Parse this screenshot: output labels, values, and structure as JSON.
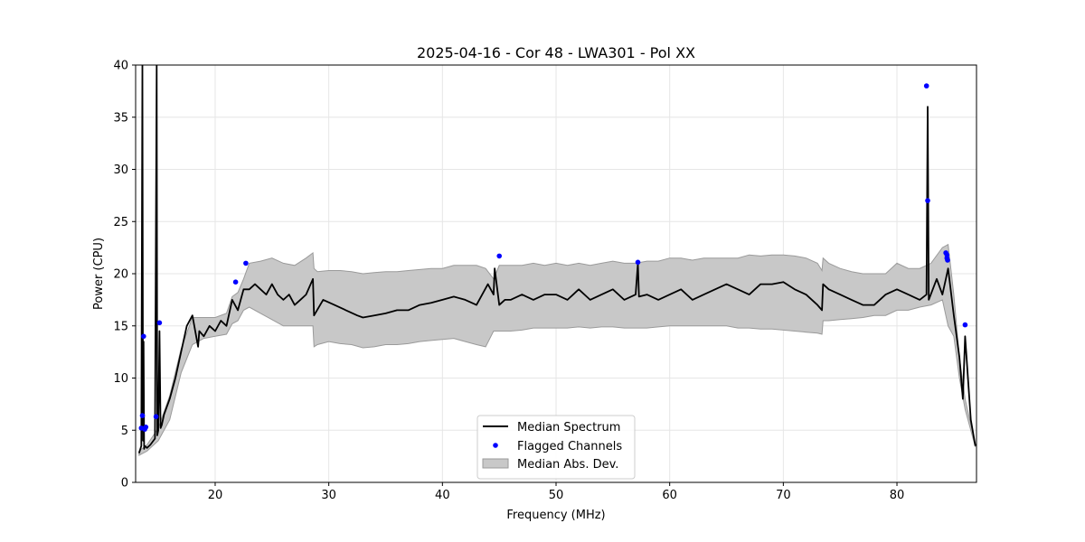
{
  "chart_data": {
    "type": "line",
    "title": "2025-04-16 - Cor 48 - LWA301 - Pol XX",
    "xlabel": "Frequency (MHz)",
    "ylabel": "Power (CPU)",
    "xlim": [
      13,
      87
    ],
    "ylim": [
      0,
      40
    ],
    "xticks": [
      20,
      30,
      40,
      50,
      60,
      70,
      80
    ],
    "yticks": [
      0,
      5,
      10,
      15,
      20,
      25,
      30,
      35,
      40
    ],
    "grid": true,
    "legend": {
      "placement": "bottom-center",
      "entries": [
        "Median Spectrum",
        "Flagged Channels",
        "Median Abs. Dev."
      ]
    },
    "colors": {
      "median": "#000000",
      "flagged": "#0000ff",
      "mad_fill": "#c8c8c8",
      "mad_edge": "#9a9a9a"
    },
    "series": [
      {
        "name": "Median Spectrum",
        "x": [
          13.3,
          13.5,
          13.6,
          13.65,
          13.7,
          13.75,
          13.8,
          14.0,
          14.3,
          14.7,
          14.85,
          14.9,
          15.0,
          15.1,
          15.2,
          15.3,
          15.5,
          16.0,
          16.5,
          17.0,
          17.5,
          18.0,
          18.5,
          18.6,
          19.0,
          19.5,
          20.0,
          20.5,
          21.0,
          21.5,
          22.0,
          22.5,
          23.0,
          23.5,
          24.0,
          24.5,
          25.0,
          25.5,
          26.0,
          26.5,
          27.0,
          27.5,
          28.0,
          28.6,
          28.7,
          29.5,
          30.5,
          31.5,
          32.5,
          33.0,
          34.0,
          35.0,
          36.0,
          37.0,
          38.0,
          39.0,
          40.0,
          41.0,
          42.0,
          43.0,
          44.0,
          44.5,
          44.6,
          45.0,
          45.5,
          46.0,
          47.0,
          48.0,
          49.0,
          50.0,
          51.0,
          52.0,
          53.0,
          54.0,
          55.0,
          56.0,
          57.0,
          57.2,
          57.3,
          58.0,
          59.0,
          60.0,
          61.0,
          62.0,
          63.0,
          64.0,
          65.0,
          66.0,
          67.0,
          68.0,
          69.0,
          70.0,
          71.0,
          72.0,
          73.0,
          73.4,
          73.5,
          74.0,
          75.0,
          76.0,
          77.0,
          78.0,
          79.0,
          80.0,
          81.0,
          82.0,
          82.6,
          82.7,
          82.8,
          83.5,
          84.0,
          84.3,
          84.5,
          85.0,
          85.5,
          85.8,
          86.0,
          86.5,
          86.9
        ],
        "values": [
          2.8,
          3.5,
          40,
          4.0,
          13.5,
          3.2,
          3.5,
          3.3,
          3.6,
          4.2,
          40,
          4.5,
          5.0,
          14.5,
          5.2,
          5.5,
          6.5,
          8.0,
          10.0,
          12.5,
          15.0,
          16.0,
          13.0,
          14.5,
          14.0,
          15.0,
          14.5,
          15.5,
          15.0,
          17.5,
          16.5,
          18.5,
          18.5,
          19.0,
          18.5,
          18.0,
          19.0,
          18.0,
          17.5,
          18.0,
          17.0,
          17.5,
          18.0,
          19.5,
          16.0,
          17.5,
          17.0,
          16.5,
          16.0,
          15.8,
          16.0,
          16.2,
          16.5,
          16.5,
          17.0,
          17.2,
          17.5,
          17.8,
          17.5,
          17.0,
          19.0,
          18.0,
          20.5,
          17.0,
          17.5,
          17.5,
          18.0,
          17.5,
          18.0,
          18.0,
          17.5,
          18.5,
          17.5,
          18.0,
          18.5,
          17.5,
          18.0,
          21.0,
          17.8,
          18.0,
          17.5,
          18.0,
          18.5,
          17.5,
          18.0,
          18.5,
          19.0,
          18.5,
          18.0,
          19.0,
          19.0,
          19.2,
          18.5,
          18.0,
          17.0,
          16.5,
          19.0,
          18.5,
          18.0,
          17.5,
          17.0,
          17.0,
          18.0,
          18.5,
          18.0,
          17.5,
          18.0,
          36.0,
          17.5,
          19.5,
          18.0,
          19.5,
          20.5,
          16.0,
          12.0,
          8.0,
          14.0,
          6.0,
          3.5
        ]
      },
      {
        "name": "Median Abs. Dev.",
        "x": [
          13.3,
          14.0,
          15.0,
          16.0,
          17.0,
          18.0,
          19.0,
          20.0,
          21.0,
          21.5,
          22.0,
          22.5,
          23.0,
          24.0,
          25.0,
          26.0,
          27.0,
          28.0,
          28.6,
          28.7,
          29.0,
          30.0,
          31.0,
          32.0,
          33.0,
          34.0,
          35.0,
          36.0,
          37.0,
          38.0,
          39.0,
          40.0,
          41.0,
          42.0,
          43.0,
          43.8,
          44.5,
          45.0,
          46.0,
          47.0,
          48.0,
          49.0,
          50.0,
          51.0,
          52.0,
          53.0,
          54.0,
          55.0,
          56.0,
          57.0,
          58.0,
          59.0,
          60.0,
          61.0,
          62.0,
          63.0,
          64.0,
          65.0,
          66.0,
          67.0,
          68.0,
          69.0,
          70.0,
          71.0,
          72.0,
          73.0,
          73.4,
          73.5,
          74.0,
          75.0,
          76.0,
          77.0,
          78.0,
          79.0,
          80.0,
          81.0,
          82.0,
          83.0,
          84.0,
          84.5,
          85.0,
          85.5,
          86.0,
          86.9
        ],
        "upper": [
          3.0,
          3.6,
          5.2,
          8.3,
          12.8,
          15.8,
          15.8,
          15.8,
          16.2,
          17.8,
          18.2,
          19.5,
          21.0,
          21.2,
          21.5,
          21.0,
          20.8,
          21.5,
          22.0,
          20.5,
          20.2,
          20.3,
          20.3,
          20.2,
          20.0,
          20.1,
          20.2,
          20.2,
          20.3,
          20.4,
          20.5,
          20.5,
          20.8,
          20.8,
          20.8,
          20.5,
          19.5,
          20.8,
          20.8,
          20.8,
          21.0,
          20.8,
          21.0,
          20.8,
          21.0,
          20.8,
          21.0,
          21.2,
          21.0,
          21.0,
          21.2,
          21.2,
          21.5,
          21.5,
          21.3,
          21.5,
          21.5,
          21.5,
          21.5,
          21.8,
          21.7,
          21.8,
          21.8,
          21.7,
          21.5,
          21.0,
          20.3,
          21.5,
          21.0,
          20.5,
          20.2,
          20.0,
          20.0,
          20.0,
          21.0,
          20.5,
          20.5,
          21.0,
          22.5,
          22.8,
          18.0,
          12.0,
          8.0,
          3.6
        ],
        "lower": [
          2.6,
          3.0,
          4.0,
          6.0,
          10.5,
          13.2,
          13.8,
          14.0,
          14.2,
          15.2,
          15.5,
          16.5,
          16.8,
          16.2,
          15.6,
          15.0,
          15.0,
          15.0,
          15.0,
          13.0,
          13.2,
          13.5,
          13.3,
          13.2,
          12.9,
          13.0,
          13.2,
          13.2,
          13.3,
          13.5,
          13.6,
          13.7,
          13.8,
          13.5,
          13.2,
          13.0,
          14.5,
          14.5,
          14.5,
          14.6,
          14.8,
          14.8,
          14.8,
          14.8,
          14.9,
          14.8,
          14.9,
          14.9,
          14.8,
          14.8,
          14.8,
          14.9,
          15.0,
          15.0,
          15.0,
          15.0,
          15.0,
          15.0,
          14.8,
          14.8,
          14.7,
          14.7,
          14.6,
          14.5,
          14.4,
          14.3,
          14.2,
          15.5,
          15.5,
          15.6,
          15.7,
          15.8,
          16.0,
          16.0,
          16.5,
          16.5,
          16.8,
          17.0,
          17.5,
          15.0,
          14.0,
          10.0,
          7.0,
          3.4
        ]
      }
    ],
    "flagged": {
      "name": "Flagged Channels",
      "x": [
        13.5,
        13.6,
        13.7,
        13.8,
        13.9,
        14.8,
        15.1,
        21.8,
        22.7,
        45.0,
        57.2,
        82.6,
        82.7,
        84.3,
        84.4,
        84.4,
        84.45,
        86.0
      ],
      "y": [
        5.2,
        6.4,
        14.0,
        5.1,
        5.3,
        6.3,
        15.3,
        19.2,
        21.0,
        21.7,
        21.1,
        38.0,
        27.0,
        22.0,
        21.8,
        21.5,
        21.3,
        15.1
      ]
    }
  }
}
